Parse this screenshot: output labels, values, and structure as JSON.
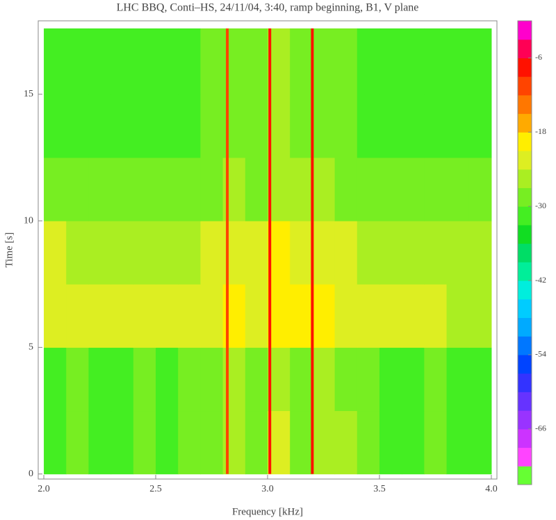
{
  "chart_data": {
    "type": "heatmap",
    "title": "LHC BBQ,  Conti–HS,  24/11/04,  3:40,  ramp beginning,  B1,  V plane",
    "x_label": "Frequency  [kHz]",
    "y_label": "Time  [s]",
    "xlim": [
      1.975,
      4.025
    ],
    "xticks": [
      {
        "value": 2,
        "label": "2.0"
      },
      2.5,
      {
        "value": 3,
        "label": "3.0"
      },
      3.5,
      {
        "value": 4,
        "label": "4.0"
      }
    ],
    "ylim": [
      -0.2,
      17.9
    ],
    "yticks": [
      0,
      5,
      10,
      15
    ],
    "x_bins": [
      2.0,
      2.1,
      2.2,
      2.3,
      2.4,
      2.5,
      2.6,
      2.7,
      2.8,
      2.9,
      3.0,
      3.1,
      3.2,
      3.3,
      3.4,
      3.5,
      3.6,
      3.7,
      3.8,
      3.9,
      4.0
    ],
    "y_bins": [
      0,
      2.5,
      5,
      7.5,
      10,
      12.5,
      15,
      17.6
    ],
    "z": [
      [
        -31,
        -30,
        -32,
        -31,
        -30,
        -31,
        -29,
        -29,
        -25,
        -29,
        -24,
        -28,
        -25,
        -27,
        -30,
        -31,
        -31,
        -30,
        -32,
        -31
      ],
      [
        -31,
        -30,
        -31,
        -32,
        -30,
        -31,
        -29,
        -28,
        -26,
        -29,
        -25,
        -28,
        -26,
        -28,
        -30,
        -31,
        -31,
        -30,
        -31,
        -31
      ],
      [
        -22,
        -23,
        -24,
        -24,
        -24,
        -23,
        -23,
        -22,
        -20,
        -22,
        -19,
        -21,
        -20,
        -22,
        -23,
        -23,
        -24,
        -24,
        -25,
        -25
      ],
      [
        -24,
        -25,
        -25,
        -26,
        -25,
        -25,
        -25,
        -24,
        -22,
        -24,
        -21,
        -23,
        -22,
        -24,
        -25,
        -25,
        -26,
        -26,
        -27,
        -27
      ],
      [
        -28,
        -28,
        -29,
        -29,
        -29,
        -29,
        -29,
        -28,
        -27,
        -28,
        -25,
        -27,
        -25,
        -28,
        -29,
        -29,
        -30,
        -30,
        -30,
        -30
      ],
      [
        -31,
        -31,
        -32,
        -32,
        -32,
        -32,
        -31,
        -30,
        -28,
        -30,
        -27,
        -30,
        -28,
        -30,
        -31,
        -32,
        -32,
        -32,
        -32,
        -32
      ],
      [
        -31,
        -31,
        -32,
        -33,
        -32,
        -32,
        -31,
        -30,
        -28,
        -30,
        -27,
        -30,
        -28,
        -30,
        -31,
        -32,
        -32,
        -32,
        -32,
        -32
      ]
    ],
    "lines": {
      "x": [
        2.82,
        3.01,
        3.2
      ],
      "values": [
        -12,
        -9,
        -9
      ]
    },
    "zlim": [
      -75,
      0
    ],
    "zticks": [
      -6,
      -18,
      -30,
      -42,
      -54,
      -66
    ],
    "colorscale": [
      "#66ff33",
      "#ff44ff",
      "#cc33ff",
      "#9933ff",
      "#6633ff",
      "#3333ff",
      "#0044ff",
      "#0077ff",
      "#00aaff",
      "#00ccff",
      "#00eedd",
      "#00ee99",
      "#00dd66",
      "#11dd22",
      "#44ee22",
      "#77ee22",
      "#aaee22",
      "#ddee22",
      "#ffee00",
      "#ffaa00",
      "#ff7700",
      "#ff4400",
      "#ff1100",
      "#ff0055",
      "#ff00cc"
    ]
  }
}
